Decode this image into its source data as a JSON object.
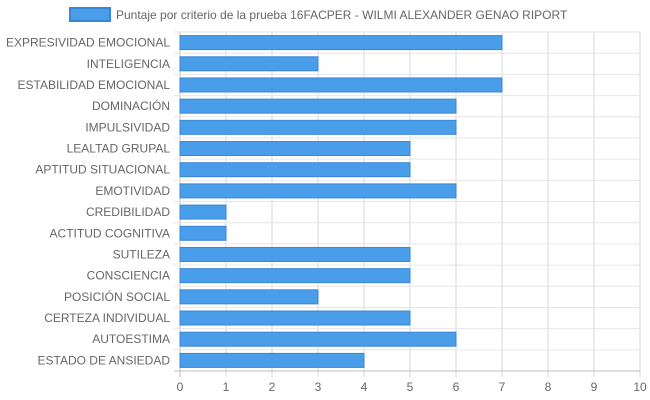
{
  "chart_data": {
    "type": "bar",
    "orientation": "horizontal",
    "categories": [
      "EXPRESIVIDAD EMOCIONAL",
      "INTELIGENCIA",
      "ESTABILIDAD EMOCIONAL",
      "DOMINACIÓN",
      "IMPULSIVIDAD",
      "LEALTAD GRUPAL",
      "APTITUD SITUACIONAL",
      "EMOTIVIDAD",
      "CREDIBILIDAD",
      "ACTITUD COGNITIVA",
      "SUTILEZA",
      "CONSCIENCIA",
      "POSICIÓN SOCIAL",
      "CERTEZA INDIVIDUAL",
      "AUTOESTIMA",
      "ESTADO DE ANSIEDAD"
    ],
    "series": [
      {
        "name": "Puntaje por criterio de la prueba 16FACPER - WILMI ALEXANDER GENAO RIPORT",
        "values": [
          7,
          3,
          7,
          6,
          6,
          5,
          5,
          6,
          1,
          1,
          5,
          5,
          3,
          5,
          6,
          4
        ],
        "color": "#4a9de8",
        "border_color": "#3a86d6"
      }
    ],
    "xlim": [
      0,
      10
    ],
    "xticks": [
      "0",
      "1",
      "2",
      "3",
      "4",
      "5",
      "6",
      "7",
      "8",
      "9",
      "10"
    ],
    "grid": true,
    "legend_position": "top"
  }
}
